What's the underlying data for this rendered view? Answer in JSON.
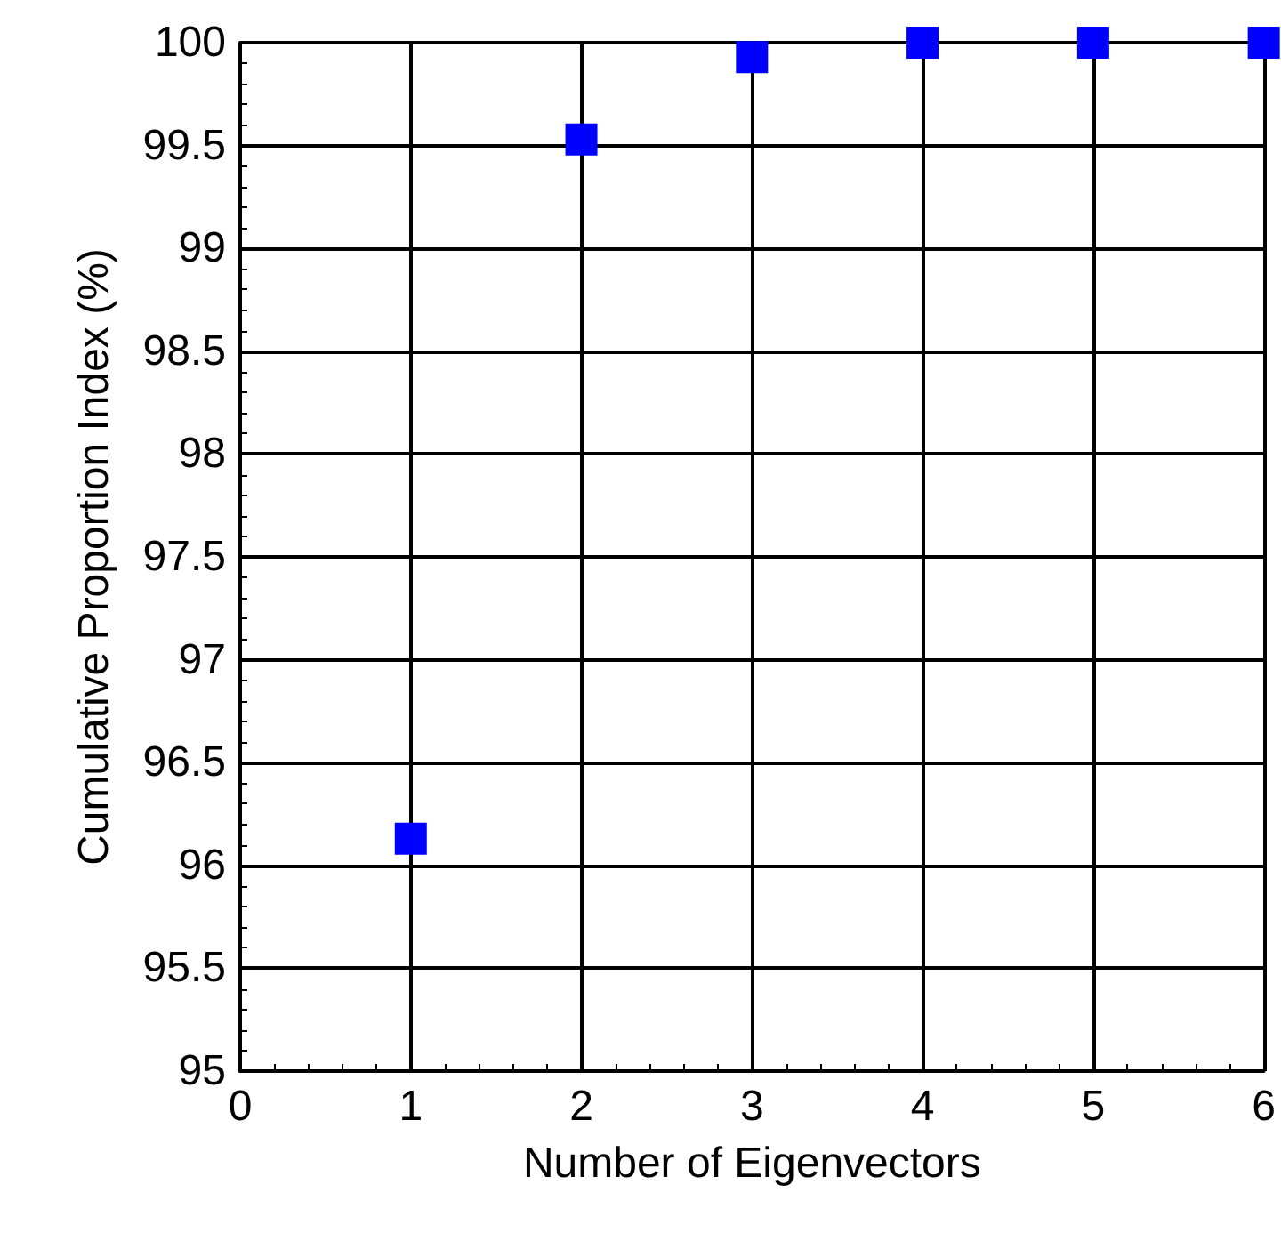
{
  "chart_data": {
    "type": "scatter",
    "xlabel": "Number of Eigenvectors",
    "ylabel": "Cumulative Proportion Index (%)",
    "x": [
      1,
      2,
      3,
      4,
      5,
      6
    ],
    "series": [
      {
        "color": "#0000ff",
        "values": [
          96.13,
          99.53,
          99.93,
          100,
          100,
          100
        ]
      }
    ],
    "xlim": [
      0,
      6
    ],
    "xticks": [
      0,
      1,
      2,
      3,
      4,
      5,
      6
    ],
    "ylim": [
      95,
      100
    ],
    "yticks": [
      95,
      95.5,
      96,
      96.5,
      97,
      97.5,
      98,
      98.5,
      99,
      99.5,
      100
    ],
    "grid": true,
    "marker": "square"
  }
}
